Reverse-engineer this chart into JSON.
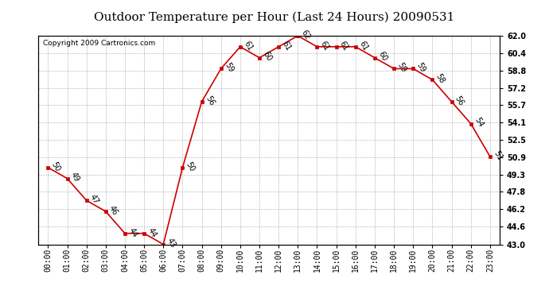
{
  "title": "Outdoor Temperature per Hour (Last 24 Hours) 20090531",
  "copyright_text": "Copyright 2009 Cartronics.com",
  "hours": [
    "00:00",
    "01:00",
    "02:00",
    "03:00",
    "04:00",
    "05:00",
    "06:00",
    "07:00",
    "08:00",
    "09:00",
    "10:00",
    "11:00",
    "12:00",
    "13:00",
    "14:00",
    "15:00",
    "16:00",
    "17:00",
    "18:00",
    "19:00",
    "20:00",
    "21:00",
    "22:00",
    "23:00"
  ],
  "temperatures": [
    50,
    49,
    47,
    46,
    44,
    44,
    43,
    50,
    56,
    59,
    61,
    60,
    61,
    62,
    61,
    61,
    61,
    60,
    59,
    59,
    58,
    56,
    54,
    51
  ],
  "ylim_min": 43.0,
  "ylim_max": 62.0,
  "yticks": [
    43.0,
    44.6,
    46.2,
    47.8,
    49.3,
    50.9,
    52.5,
    54.1,
    55.7,
    57.2,
    58.8,
    60.4,
    62.0
  ],
  "line_color": "#cc0000",
  "marker_color": "#cc0000",
  "bg_color": "#ffffff",
  "grid_color": "#aaaaaa",
  "title_fontsize": 11,
  "label_fontsize": 7,
  "tick_fontsize": 7,
  "copyright_fontsize": 6.5
}
